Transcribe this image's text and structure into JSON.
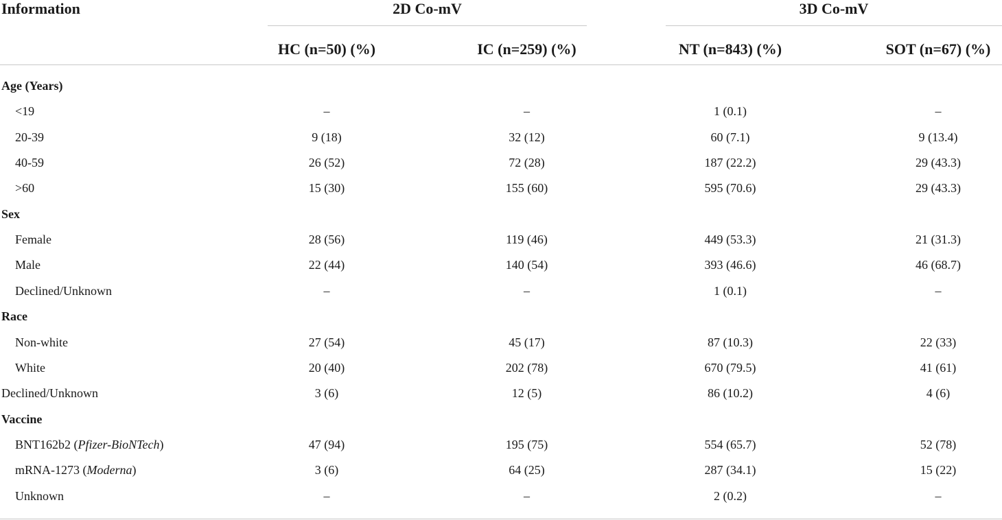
{
  "table": {
    "corner_header": "Information",
    "group_headers": [
      "2D Co-mV",
      "3D Co-mV"
    ],
    "column_headers": [
      "HC (n=50) (%)",
      "IC (n=259) (%)",
      "NT (n=843) (%)",
      "SOT (n=67) (%)"
    ],
    "rows": [
      {
        "label": "Age (Years)",
        "kind": "section",
        "values": [
          "",
          "",
          "",
          ""
        ]
      },
      {
        "label": "<19",
        "kind": "item",
        "values": [
          "–",
          "–",
          "1 (0.1)",
          "–"
        ]
      },
      {
        "label": "20-39",
        "kind": "item",
        "values": [
          "9 (18)",
          "32 (12)",
          "60 (7.1)",
          "9 (13.4)"
        ]
      },
      {
        "label": "40-59",
        "kind": "item",
        "values": [
          "26 (52)",
          "72 (28)",
          "187 (22.2)",
          "29 (43.3)"
        ]
      },
      {
        "label": ">60",
        "kind": "item",
        "values": [
          "15 (30)",
          "155 (60)",
          "595 (70.6)",
          "29 (43.3)"
        ]
      },
      {
        "label": "Sex",
        "kind": "section",
        "values": [
          "",
          "",
          "",
          ""
        ]
      },
      {
        "label": "Female",
        "kind": "item",
        "values": [
          "28 (56)",
          "119 (46)",
          "449 (53.3)",
          "21 (31.3)"
        ]
      },
      {
        "label": "Male",
        "kind": "item",
        "values": [
          "22 (44)",
          "140 (54)",
          "393 (46.6)",
          "46 (68.7)"
        ]
      },
      {
        "label": "Declined/Unknown",
        "kind": "item",
        "values": [
          "–",
          "–",
          "1 (0.1)",
          "–"
        ]
      },
      {
        "label": "Race",
        "kind": "section",
        "values": [
          "",
          "",
          "",
          ""
        ]
      },
      {
        "label": "Non-white",
        "kind": "item",
        "values": [
          "27 (54)",
          "45 (17)",
          "87 (10.3)",
          "22 (33)"
        ]
      },
      {
        "label": "White",
        "kind": "item",
        "values": [
          "20 (40)",
          "202 (78)",
          "670 (79.5)",
          "41 (61)"
        ]
      },
      {
        "label": "Declined/Unknown",
        "kind": "flush",
        "values": [
          "3 (6)",
          "12 (5)",
          "86 (10.2)",
          "4 (6)"
        ]
      },
      {
        "label": "Vaccine",
        "kind": "section",
        "values": [
          "",
          "",
          "",
          ""
        ]
      },
      {
        "label": "BNT162b2 (",
        "label_italic": "Pfizer-BioNTech",
        "label_suffix": ")",
        "kind": "item",
        "values": [
          "47 (94)",
          "195 (75)",
          "554 (65.7)",
          "52 (78)"
        ]
      },
      {
        "label": "mRNA-1273 (",
        "label_italic": "Moderna",
        "label_suffix": ")",
        "kind": "item",
        "values": [
          "3 (6)",
          "64 (25)",
          "287 (34.1)",
          "15 (22)"
        ]
      },
      {
        "label": "Unknown",
        "kind": "item",
        "values": [
          "–",
          "–",
          "2 (0.2)",
          "–"
        ]
      }
    ]
  }
}
